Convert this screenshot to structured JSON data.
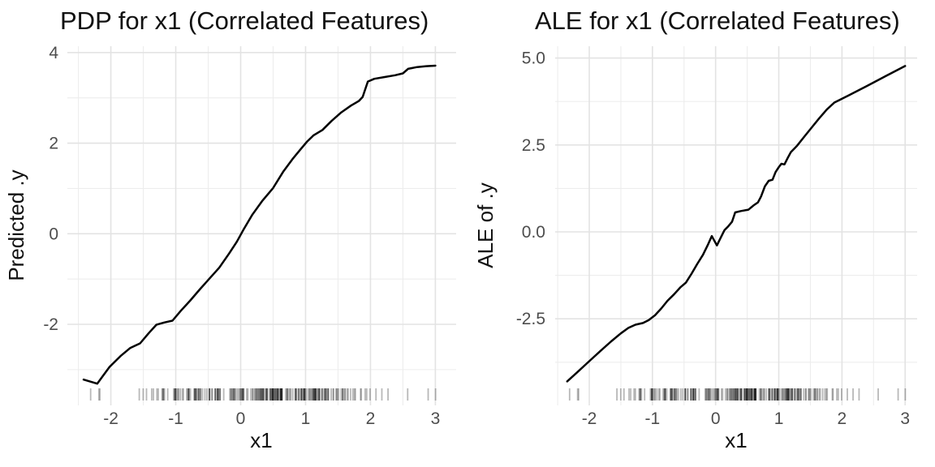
{
  "figure": {
    "background": "#ffffff",
    "title_color": "#111111",
    "axis_title_color": "#111111",
    "tick_label_color": "#4d4d4d",
    "grid_major_color": "#e3e3e3",
    "grid_minor_color": "#ededed",
    "curve_color": "#000000",
    "rug_color": "#000000"
  },
  "chart_data": [
    {
      "type": "line",
      "title": "PDP for x1 (Correlated Features)",
      "xlabel": "x1",
      "ylabel": "Predicted .y",
      "legend": "none",
      "grid": true,
      "line_color": "#000000",
      "xlim": [
        -2.67,
        3.32
      ],
      "ylim": [
        -3.79,
        4.14
      ],
      "x_ticks": {
        "values": [
          -2,
          -1,
          0,
          1,
          2,
          3
        ],
        "labels": [
          "-2",
          "-1",
          "0",
          "1",
          "2",
          "3"
        ]
      },
      "y_ticks": {
        "values": [
          4,
          2,
          0,
          -2
        ],
        "labels": [
          "4",
          "2",
          "0",
          "-2"
        ]
      },
      "x_minor": [
        -2.5,
        -1.5,
        -0.5,
        0.5,
        1.5,
        2.5
      ],
      "y_minor": [
        3,
        1,
        -1,
        -3
      ],
      "series": [
        {
          "name": "PDP curve",
          "points": [
            [
              -2.42,
              -3.22
            ],
            [
              -2.21,
              -3.31
            ],
            [
              -2.02,
              -2.94
            ],
            [
              -1.85,
              -2.7
            ],
            [
              -1.7,
              -2.52
            ],
            [
              -1.55,
              -2.42
            ],
            [
              -1.42,
              -2.2
            ],
            [
              -1.3,
              -2.01
            ],
            [
              -1.18,
              -1.96
            ],
            [
              -1.05,
              -1.92
            ],
            [
              -0.92,
              -1.7
            ],
            [
              -0.78,
              -1.48
            ],
            [
              -0.63,
              -1.23
            ],
            [
              -0.48,
              -0.99
            ],
            [
              -0.33,
              -0.75
            ],
            [
              -0.18,
              -0.44
            ],
            [
              -0.06,
              -0.18
            ],
            [
              0.04,
              0.08
            ],
            [
              0.18,
              0.42
            ],
            [
              0.33,
              0.72
            ],
            [
              0.5,
              1.01
            ],
            [
              0.66,
              1.38
            ],
            [
              0.8,
              1.65
            ],
            [
              0.92,
              1.86
            ],
            [
              1.02,
              2.03
            ],
            [
              1.12,
              2.17
            ],
            [
              1.26,
              2.29
            ],
            [
              1.4,
              2.49
            ],
            [
              1.55,
              2.68
            ],
            [
              1.7,
              2.83
            ],
            [
              1.82,
              2.93
            ],
            [
              1.88,
              3.02
            ],
            [
              1.96,
              3.36
            ],
            [
              2.06,
              3.42
            ],
            [
              2.22,
              3.46
            ],
            [
              2.38,
              3.5
            ],
            [
              2.5,
              3.54
            ],
            [
              2.58,
              3.64
            ],
            [
              2.72,
              3.68
            ],
            [
              2.86,
              3.7
            ],
            [
              3.0,
              3.71
            ]
          ]
        }
      ],
      "rug": {
        "n": 250,
        "seed": 42,
        "mean": 0.35,
        "sd": 0.95,
        "min": -2.5,
        "max": 3.08,
        "opacity": 0.28
      }
    },
    {
      "type": "line",
      "title": "ALE for x1 (Correlated Features)",
      "xlabel": "x1",
      "ylabel": "ALE of .y",
      "legend": "none",
      "grid": true,
      "line_color": "#000000",
      "xlim": [
        -2.54,
        3.19
      ],
      "ylim": [
        -4.99,
        5.34
      ],
      "x_ticks": {
        "values": [
          -2,
          -1,
          0,
          1,
          2,
          3
        ],
        "labels": [
          "-2",
          "-1",
          "0",
          "1",
          "2",
          "3"
        ]
      },
      "y_ticks": {
        "values": [
          5.0,
          2.5,
          0.0,
          -2.5
        ],
        "labels": [
          "5.0",
          "2.5",
          "0.0",
          "-2.5"
        ]
      },
      "x_minor": [
        -2.5,
        -1.5,
        -0.5,
        0.5,
        1.5,
        2.5
      ],
      "y_minor": [
        3.75,
        1.25,
        -1.25,
        -3.75
      ],
      "series": [
        {
          "name": "ALE curve",
          "points": [
            [
              -2.35,
              -4.3
            ],
            [
              -2.18,
              -4.02
            ],
            [
              -2.0,
              -3.72
            ],
            [
              -1.82,
              -3.42
            ],
            [
              -1.66,
              -3.16
            ],
            [
              -1.5,
              -2.92
            ],
            [
              -1.38,
              -2.76
            ],
            [
              -1.27,
              -2.67
            ],
            [
              -1.15,
              -2.62
            ],
            [
              -1.06,
              -2.54
            ],
            [
              -0.96,
              -2.4
            ],
            [
              -0.86,
              -2.2
            ],
            [
              -0.76,
              -1.98
            ],
            [
              -0.66,
              -1.8
            ],
            [
              -0.56,
              -1.6
            ],
            [
              -0.47,
              -1.46
            ],
            [
              -0.38,
              -1.2
            ],
            [
              -0.29,
              -0.92
            ],
            [
              -0.2,
              -0.66
            ],
            [
              -0.12,
              -0.36
            ],
            [
              -0.06,
              -0.12
            ],
            [
              0.02,
              -0.39
            ],
            [
              0.08,
              -0.17
            ],
            [
              0.14,
              0.05
            ],
            [
              0.2,
              0.16
            ],
            [
              0.26,
              0.29
            ],
            [
              0.31,
              0.56
            ],
            [
              0.4,
              0.6
            ],
            [
              0.52,
              0.64
            ],
            [
              0.6,
              0.76
            ],
            [
              0.67,
              0.85
            ],
            [
              0.72,
              1.02
            ],
            [
              0.78,
              1.31
            ],
            [
              0.84,
              1.47
            ],
            [
              0.9,
              1.5
            ],
            [
              0.95,
              1.72
            ],
            [
              1.0,
              1.86
            ],
            [
              1.04,
              1.96
            ],
            [
              1.09,
              1.94
            ],
            [
              1.14,
              2.12
            ],
            [
              1.19,
              2.29
            ],
            [
              1.29,
              2.48
            ],
            [
              1.4,
              2.73
            ],
            [
              1.52,
              3.0
            ],
            [
              1.64,
              3.27
            ],
            [
              1.76,
              3.52
            ],
            [
              1.88,
              3.72
            ],
            [
              2.1,
              3.92
            ],
            [
              2.4,
              4.2
            ],
            [
              2.7,
              4.49
            ],
            [
              3.0,
              4.77
            ]
          ]
        }
      ],
      "rug": {
        "n": 250,
        "seed": 42,
        "mean": 0.35,
        "sd": 0.95,
        "min": -2.5,
        "max": 3.08,
        "opacity": 0.28
      }
    }
  ]
}
